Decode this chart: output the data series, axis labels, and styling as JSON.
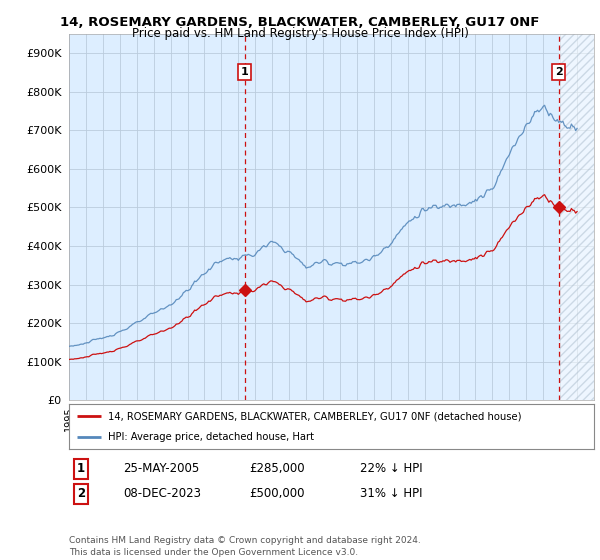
{
  "title": "14, ROSEMARY GARDENS, BLACKWATER, CAMBERLEY, GU17 0NF",
  "subtitle": "Price paid vs. HM Land Registry's House Price Index (HPI)",
  "ylim": [
    0,
    950000
  ],
  "yticks": [
    0,
    100000,
    200000,
    300000,
    400000,
    500000,
    600000,
    700000,
    800000,
    900000
  ],
  "ytick_labels": [
    "£0",
    "£100K",
    "£200K",
    "£300K",
    "£400K",
    "£500K",
    "£600K",
    "£700K",
    "£800K",
    "£900K"
  ],
  "hpi_color": "#5588bb",
  "price_color": "#cc1111",
  "chart_bg_color": "#ddeeff",
  "marker1_date": 2005.38,
  "marker1_price": 285000,
  "marker1_label": "1",
  "marker2_date": 2023.92,
  "marker2_price": 500000,
  "marker2_label": "2",
  "legend_line1": "14, ROSEMARY GARDENS, BLACKWATER, CAMBERLEY, GU17 0NF (detached house)",
  "legend_line2": "HPI: Average price, detached house, Hart",
  "table_row1_num": "1",
  "table_row1_date": "25-MAY-2005",
  "table_row1_price": "£285,000",
  "table_row1_hpi": "22% ↓ HPI",
  "table_row2_num": "2",
  "table_row2_date": "08-DEC-2023",
  "table_row2_price": "£500,000",
  "table_row2_hpi": "31% ↓ HPI",
  "footer": "Contains HM Land Registry data © Crown copyright and database right 2024.\nThis data is licensed under the Open Government Licence v3.0.",
  "background_color": "#ffffff",
  "grid_color": "#bbccdd",
  "vline_color": "#cc1111",
  "xlim_start": 1995,
  "xlim_end": 2026
}
